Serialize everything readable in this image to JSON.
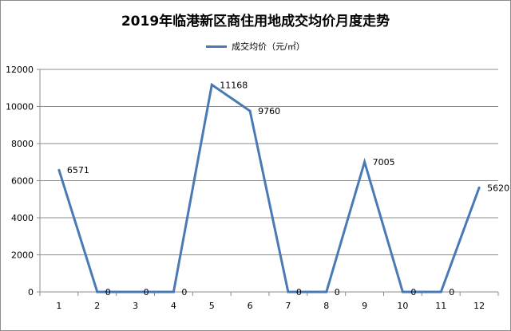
{
  "chart_data": {
    "type": "line",
    "title": "2019年临港新区商住用地成交均价月度走势",
    "xlabel": "",
    "ylabel": "",
    "categories": [
      "1",
      "2",
      "3",
      "4",
      "5",
      "6",
      "7",
      "8",
      "9",
      "10",
      "11",
      "12"
    ],
    "series": [
      {
        "name": "成交均价（元/㎡）",
        "color": "#4a7ab5",
        "values": [
          6571,
          0,
          0,
          0,
          11168,
          9760,
          0,
          0,
          7005,
          0,
          0,
          5620
        ]
      }
    ],
    "data_labels": [
      "6571",
      "0",
      "0",
      "0",
      "11168",
      "9760",
      "0",
      "0",
      "7005",
      "0",
      "0",
      "5620"
    ],
    "ylim": [
      0,
      12000
    ],
    "yticks": [
      "0",
      "2000",
      "4000",
      "6000",
      "8000",
      "10000",
      "12000"
    ],
    "grid": true,
    "legend_position": "top-center"
  }
}
